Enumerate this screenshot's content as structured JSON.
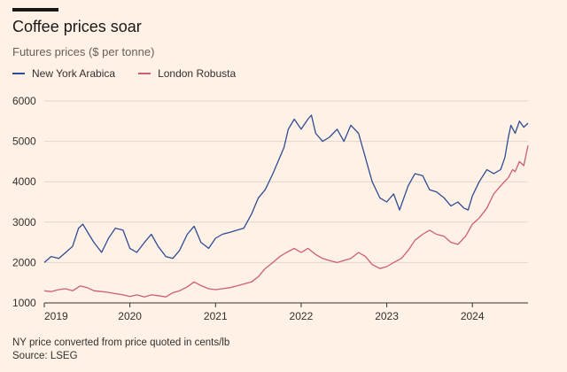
{
  "header": {
    "title": "Coffee prices soar",
    "subtitle": "Futures prices ($ per tonne)"
  },
  "footer": {
    "note": "NY price converted from price quoted in cents/lb",
    "source": "Source: LSEG"
  },
  "colors": {
    "arabica": "#2E4C94",
    "robusta": "#CC5F71",
    "grid": "#E0D7CE",
    "baseline": "#33302E"
  },
  "chart_data": {
    "type": "line",
    "title": "Coffee prices soar",
    "subtitle": "Futures prices ($ per tonne)",
    "xlabel": "",
    "ylabel": "$ per tonne",
    "ylim": [
      1000,
      6000
    ],
    "xlim": [
      2019.0,
      2024.65
    ],
    "yticks": [
      1000,
      2000,
      3000,
      4000,
      5000,
      6000
    ],
    "ytick_labels": [
      "1000",
      "2000",
      "3000",
      "4000",
      "5000",
      "6000"
    ],
    "xticks": [
      2019,
      2020,
      2021,
      2022,
      2023,
      2024
    ],
    "xtick_labels": [
      "2019",
      "2020",
      "2021",
      "2022",
      "2023",
      "2024"
    ],
    "legend": [
      "New York Arabica",
      "London Robusta"
    ],
    "legend_position": "top-left",
    "grid": true,
    "series": [
      {
        "name": "New York Arabica",
        "color": "#2E4C94",
        "points": [
          [
            2019.0,
            2000
          ],
          [
            2019.08,
            2150
          ],
          [
            2019.17,
            2100
          ],
          [
            2019.25,
            2250
          ],
          [
            2019.33,
            2400
          ],
          [
            2019.4,
            2850
          ],
          [
            2019.45,
            2950
          ],
          [
            2019.52,
            2700
          ],
          [
            2019.58,
            2500
          ],
          [
            2019.67,
            2250
          ],
          [
            2019.75,
            2600
          ],
          [
            2019.83,
            2850
          ],
          [
            2019.92,
            2800
          ],
          [
            2020.0,
            2350
          ],
          [
            2020.08,
            2250
          ],
          [
            2020.17,
            2500
          ],
          [
            2020.25,
            2700
          ],
          [
            2020.33,
            2400
          ],
          [
            2020.42,
            2150
          ],
          [
            2020.5,
            2100
          ],
          [
            2020.58,
            2300
          ],
          [
            2020.67,
            2700
          ],
          [
            2020.75,
            2900
          ],
          [
            2020.83,
            2500
          ],
          [
            2020.92,
            2350
          ],
          [
            2021.0,
            2600
          ],
          [
            2021.08,
            2700
          ],
          [
            2021.17,
            2750
          ],
          [
            2021.25,
            2800
          ],
          [
            2021.33,
            2850
          ],
          [
            2021.42,
            3200
          ],
          [
            2021.5,
            3600
          ],
          [
            2021.58,
            3800
          ],
          [
            2021.67,
            4200
          ],
          [
            2021.75,
            4600
          ],
          [
            2021.8,
            4850
          ],
          [
            2021.85,
            5300
          ],
          [
            2021.92,
            5550
          ],
          [
            2022.0,
            5300
          ],
          [
            2022.08,
            5550
          ],
          [
            2022.12,
            5650
          ],
          [
            2022.17,
            5200
          ],
          [
            2022.25,
            5000
          ],
          [
            2022.33,
            5100
          ],
          [
            2022.42,
            5300
          ],
          [
            2022.5,
            5000
          ],
          [
            2022.58,
            5400
          ],
          [
            2022.67,
            5200
          ],
          [
            2022.75,
            4600
          ],
          [
            2022.83,
            4000
          ],
          [
            2022.92,
            3600
          ],
          [
            2023.0,
            3500
          ],
          [
            2023.08,
            3700
          ],
          [
            2023.15,
            3300
          ],
          [
            2023.25,
            3900
          ],
          [
            2023.33,
            4200
          ],
          [
            2023.42,
            4150
          ],
          [
            2023.5,
            3800
          ],
          [
            2023.58,
            3750
          ],
          [
            2023.67,
            3600
          ],
          [
            2023.75,
            3400
          ],
          [
            2023.83,
            3500
          ],
          [
            2023.9,
            3350
          ],
          [
            2023.95,
            3300
          ],
          [
            2024.0,
            3650
          ],
          [
            2024.08,
            4000
          ],
          [
            2024.17,
            4300
          ],
          [
            2024.25,
            4200
          ],
          [
            2024.33,
            4300
          ],
          [
            2024.38,
            4600
          ],
          [
            2024.42,
            5100
          ],
          [
            2024.45,
            5400
          ],
          [
            2024.5,
            5200
          ],
          [
            2024.55,
            5500
          ],
          [
            2024.6,
            5350
          ],
          [
            2024.65,
            5450
          ]
        ]
      },
      {
        "name": "London Robusta",
        "color": "#CC5F71",
        "points": [
          [
            2019.0,
            1300
          ],
          [
            2019.08,
            1280
          ],
          [
            2019.17,
            1330
          ],
          [
            2019.25,
            1350
          ],
          [
            2019.33,
            1300
          ],
          [
            2019.42,
            1420
          ],
          [
            2019.5,
            1380
          ],
          [
            2019.58,
            1300
          ],
          [
            2019.67,
            1280
          ],
          [
            2019.75,
            1260
          ],
          [
            2019.83,
            1230
          ],
          [
            2019.92,
            1200
          ],
          [
            2020.0,
            1160
          ],
          [
            2020.08,
            1200
          ],
          [
            2020.17,
            1150
          ],
          [
            2020.25,
            1200
          ],
          [
            2020.33,
            1180
          ],
          [
            2020.42,
            1150
          ],
          [
            2020.5,
            1250
          ],
          [
            2020.58,
            1300
          ],
          [
            2020.67,
            1400
          ],
          [
            2020.75,
            1520
          ],
          [
            2020.83,
            1430
          ],
          [
            2020.92,
            1350
          ],
          [
            2021.0,
            1330
          ],
          [
            2021.08,
            1350
          ],
          [
            2021.17,
            1380
          ],
          [
            2021.25,
            1420
          ],
          [
            2021.33,
            1470
          ],
          [
            2021.42,
            1520
          ],
          [
            2021.5,
            1650
          ],
          [
            2021.58,
            1850
          ],
          [
            2021.67,
            2000
          ],
          [
            2021.75,
            2150
          ],
          [
            2021.83,
            2250
          ],
          [
            2021.92,
            2350
          ],
          [
            2022.0,
            2250
          ],
          [
            2022.08,
            2350
          ],
          [
            2022.17,
            2200
          ],
          [
            2022.25,
            2100
          ],
          [
            2022.33,
            2050
          ],
          [
            2022.42,
            2000
          ],
          [
            2022.5,
            2050
          ],
          [
            2022.58,
            2100
          ],
          [
            2022.67,
            2250
          ],
          [
            2022.75,
            2150
          ],
          [
            2022.83,
            1950
          ],
          [
            2022.92,
            1850
          ],
          [
            2023.0,
            1900
          ],
          [
            2023.08,
            2000
          ],
          [
            2023.17,
            2100
          ],
          [
            2023.25,
            2300
          ],
          [
            2023.33,
            2550
          ],
          [
            2023.42,
            2700
          ],
          [
            2023.5,
            2800
          ],
          [
            2023.58,
            2700
          ],
          [
            2023.67,
            2650
          ],
          [
            2023.75,
            2500
          ],
          [
            2023.83,
            2450
          ],
          [
            2023.92,
            2650
          ],
          [
            2024.0,
            2950
          ],
          [
            2024.08,
            3100
          ],
          [
            2024.17,
            3350
          ],
          [
            2024.25,
            3700
          ],
          [
            2024.33,
            3900
          ],
          [
            2024.42,
            4100
          ],
          [
            2024.47,
            4300
          ],
          [
            2024.5,
            4250
          ],
          [
            2024.55,
            4500
          ],
          [
            2024.6,
            4400
          ],
          [
            2024.65,
            4900
          ]
        ]
      }
    ]
  }
}
